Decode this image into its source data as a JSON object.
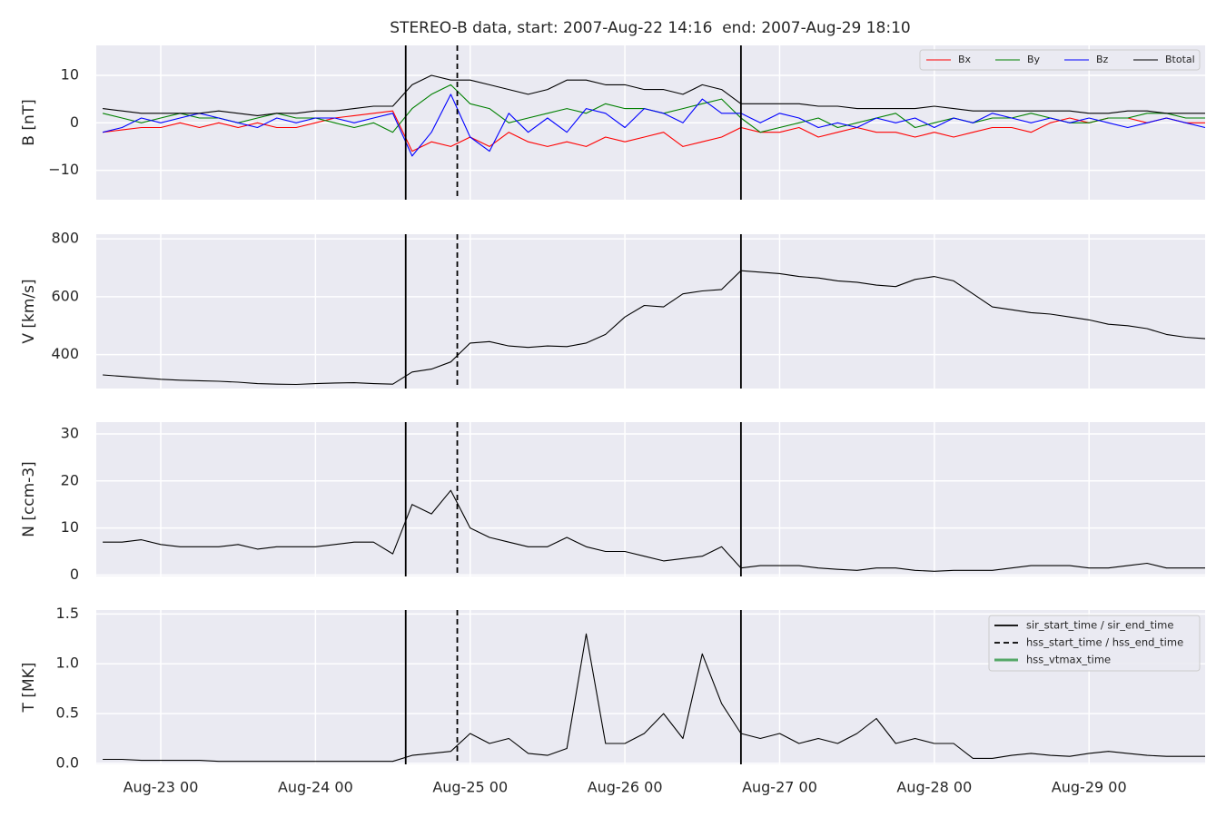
{
  "title": "STEREO-B data, start: 2007-Aug-22 14:16  end: 2007-Aug-29 18:10",
  "chart_data": [
    {
      "type": "line",
      "ylabel": "B [nT]",
      "grid": true,
      "legend": "upper right",
      "show_xtick_labels": false,
      "xlim": [
        "Aug-22 14",
        "Aug-29 18"
      ],
      "xticks": [
        "Aug-23 00",
        "Aug-24 00",
        "Aug-25 00",
        "Aug-26 00",
        "Aug-27 00",
        "Aug-28 00",
        "Aug-29 00"
      ],
      "ylim": [
        -16.2,
        16.3
      ],
      "yticks": [
        {
          "value": -10,
          "label": "−10"
        },
        0,
        10
      ],
      "x": [
        "Aug-22 15",
        "Aug-22 18",
        "Aug-22 21",
        "Aug-23 00",
        "Aug-23 03",
        "Aug-23 06",
        "Aug-23 09",
        "Aug-23 12",
        "Aug-23 15",
        "Aug-23 18",
        "Aug-23 21",
        "Aug-24 00",
        "Aug-24 03",
        "Aug-24 06",
        "Aug-24 09",
        "Aug-24 12",
        "Aug-24 15",
        "Aug-24 18",
        "Aug-24 21",
        "Aug-25 00",
        "Aug-25 03",
        "Aug-25 06",
        "Aug-25 09",
        "Aug-25 12",
        "Aug-25 15",
        "Aug-25 18",
        "Aug-25 21",
        "Aug-26 00",
        "Aug-26 03",
        "Aug-26 06",
        "Aug-26 09",
        "Aug-26 12",
        "Aug-26 15",
        "Aug-26 18",
        "Aug-26 21",
        "Aug-27 00",
        "Aug-27 03",
        "Aug-27 06",
        "Aug-27 09",
        "Aug-27 12",
        "Aug-27 15",
        "Aug-27 18",
        "Aug-27 21",
        "Aug-28 00",
        "Aug-28 03",
        "Aug-28 06",
        "Aug-28 09",
        "Aug-28 12",
        "Aug-28 15",
        "Aug-28 18",
        "Aug-28 21",
        "Aug-29 00",
        "Aug-29 03",
        "Aug-29 06",
        "Aug-29 09",
        "Aug-29 12",
        "Aug-29 15",
        "Aug-29 18"
      ],
      "series": [
        {
          "name": "Bx",
          "color": "#ff0000",
          "values": [
            -2,
            -1.5,
            -1,
            -1,
            0,
            -1,
            0,
            -1,
            0,
            -1,
            -1,
            0,
            1,
            1.5,
            2,
            2.5,
            -6,
            -4,
            -5,
            -3,
            -5,
            -2,
            -4,
            -5,
            -4,
            -5,
            -3,
            -4,
            -3,
            -2,
            -5,
            -4,
            -3,
            -1,
            -2,
            -2,
            -1,
            -3,
            -2,
            -1,
            -2,
            -2,
            -3,
            -2,
            -3,
            -2,
            -1,
            -1,
            -2,
            0,
            1,
            0,
            1,
            1,
            0,
            1,
            0,
            0
          ]
        },
        {
          "name": "By",
          "color": "#008000",
          "values": [
            2,
            1,
            0,
            1,
            2,
            1,
            1,
            0,
            1,
            2,
            1,
            1,
            0,
            -1,
            0,
            -2,
            3,
            6,
            8,
            4,
            3,
            0,
            1,
            2,
            3,
            2,
            4,
            3,
            3,
            2,
            3,
            4,
            5,
            1,
            -2,
            -1,
            0,
            1,
            -1,
            0,
            1,
            2,
            -1,
            0,
            1,
            0,
            1,
            1,
            2,
            1,
            0,
            0,
            1,
            1,
            2,
            2,
            1,
            1
          ]
        },
        {
          "name": "Bz",
          "color": "#0000ff",
          "values": [
            -2,
            -1,
            1,
            0,
            1,
            2,
            1,
            0,
            -1,
            1,
            0,
            1,
            1,
            0,
            1,
            2,
            -7,
            -2,
            6,
            -3,
            -6,
            2,
            -2,
            1,
            -2,
            3,
            2,
            -1,
            3,
            2,
            0,
            5,
            2,
            2,
            0,
            2,
            1,
            -1,
            0,
            -1,
            1,
            0,
            1,
            -1,
            1,
            0,
            2,
            1,
            0,
            1,
            0,
            1,
            0,
            -1,
            0,
            1,
            0,
            -1
          ]
        },
        {
          "name": "Btotal",
          "color": "#000000",
          "values": [
            3,
            2.5,
            2,
            2,
            2,
            2,
            2.5,
            2,
            1.5,
            2,
            2,
            2.5,
            2.5,
            3,
            3.5,
            3.5,
            8,
            10,
            9,
            9,
            8,
            7,
            6,
            7,
            9,
            9,
            8,
            8,
            7,
            7,
            6,
            8,
            7,
            4,
            4,
            4,
            4,
            3.5,
            3.5,
            3,
            3,
            3,
            3,
            3.5,
            3,
            2.5,
            2.5,
            2.5,
            2.5,
            2.5,
            2.5,
            2,
            2,
            2.5,
            2.5,
            2,
            2,
            2
          ]
        }
      ],
      "vlines": [
        {
          "x": "Aug-24 14",
          "style": "solid"
        },
        {
          "x": "Aug-24 22",
          "style": "dashed"
        },
        {
          "x": "Aug-26 18",
          "style": "solid"
        }
      ]
    },
    {
      "type": "line",
      "ylabel": "V [km/s]",
      "grid": true,
      "show_xtick_labels": false,
      "xlim": [
        "Aug-22 14",
        "Aug-29 18"
      ],
      "xticks": [
        "Aug-23 00",
        "Aug-24 00",
        "Aug-25 00",
        "Aug-26 00",
        "Aug-27 00",
        "Aug-28 00",
        "Aug-29 00"
      ],
      "ylim": [
        283,
        816
      ],
      "yticks": [
        400,
        600,
        800
      ],
      "x": [
        "Aug-22 15",
        "Aug-22 18",
        "Aug-22 21",
        "Aug-23 00",
        "Aug-23 03",
        "Aug-23 06",
        "Aug-23 09",
        "Aug-23 12",
        "Aug-23 15",
        "Aug-23 18",
        "Aug-23 21",
        "Aug-24 00",
        "Aug-24 03",
        "Aug-24 06",
        "Aug-24 09",
        "Aug-24 12",
        "Aug-24 15",
        "Aug-24 18",
        "Aug-24 21",
        "Aug-25 00",
        "Aug-25 03",
        "Aug-25 06",
        "Aug-25 09",
        "Aug-25 12",
        "Aug-25 15",
        "Aug-25 18",
        "Aug-25 21",
        "Aug-26 00",
        "Aug-26 03",
        "Aug-26 06",
        "Aug-26 09",
        "Aug-26 12",
        "Aug-26 15",
        "Aug-26 18",
        "Aug-26 21",
        "Aug-27 00",
        "Aug-27 03",
        "Aug-27 06",
        "Aug-27 09",
        "Aug-27 12",
        "Aug-27 15",
        "Aug-27 18",
        "Aug-27 21",
        "Aug-28 00",
        "Aug-28 03",
        "Aug-28 06",
        "Aug-28 09",
        "Aug-28 12",
        "Aug-28 15",
        "Aug-28 18",
        "Aug-28 21",
        "Aug-29 00",
        "Aug-29 03",
        "Aug-29 06",
        "Aug-29 09",
        "Aug-29 12",
        "Aug-29 15",
        "Aug-29 18"
      ],
      "series": [
        {
          "color": "#000000",
          "values": [
            330,
            325,
            320,
            315,
            312,
            310,
            308,
            305,
            300,
            298,
            297,
            300,
            302,
            303,
            300,
            298,
            340,
            350,
            375,
            440,
            445,
            430,
            425,
            430,
            428,
            440,
            470,
            530,
            570,
            565,
            610,
            620,
            625,
            690,
            685,
            680,
            670,
            665,
            655,
            650,
            640,
            635,
            660,
            670,
            655,
            610,
            565,
            555,
            545,
            540,
            530,
            520,
            505,
            500,
            490,
            470,
            460,
            455
          ]
        }
      ],
      "vlines": [
        {
          "x": "Aug-24 14",
          "style": "solid"
        },
        {
          "x": "Aug-24 22",
          "style": "dashed"
        },
        {
          "x": "Aug-26 18",
          "style": "solid"
        }
      ]
    },
    {
      "type": "line",
      "ylabel": "N [ccm-3]",
      "grid": true,
      "show_xtick_labels": false,
      "xlim": [
        "Aug-22 14",
        "Aug-29 18"
      ],
      "xticks": [
        "Aug-23 00",
        "Aug-24 00",
        "Aug-25 00",
        "Aug-26 00",
        "Aug-27 00",
        "Aug-28 00",
        "Aug-29 00"
      ],
      "ylim": [
        -0.3,
        32.5
      ],
      "yticks": [
        0,
        10,
        20,
        30
      ],
      "x": [
        "Aug-22 15",
        "Aug-22 18",
        "Aug-22 21",
        "Aug-23 00",
        "Aug-23 03",
        "Aug-23 06",
        "Aug-23 09",
        "Aug-23 12",
        "Aug-23 15",
        "Aug-23 18",
        "Aug-23 21",
        "Aug-24 00",
        "Aug-24 03",
        "Aug-24 06",
        "Aug-24 09",
        "Aug-24 12",
        "Aug-24 15",
        "Aug-24 18",
        "Aug-24 21",
        "Aug-25 00",
        "Aug-25 03",
        "Aug-25 06",
        "Aug-25 09",
        "Aug-25 12",
        "Aug-25 15",
        "Aug-25 18",
        "Aug-25 21",
        "Aug-26 00",
        "Aug-26 03",
        "Aug-26 06",
        "Aug-26 09",
        "Aug-26 12",
        "Aug-26 15",
        "Aug-26 18",
        "Aug-26 21",
        "Aug-27 00",
        "Aug-27 03",
        "Aug-27 06",
        "Aug-27 09",
        "Aug-27 12",
        "Aug-27 15",
        "Aug-27 18",
        "Aug-27 21",
        "Aug-28 00",
        "Aug-28 03",
        "Aug-28 06",
        "Aug-28 09",
        "Aug-28 12",
        "Aug-28 15",
        "Aug-28 18",
        "Aug-28 21",
        "Aug-29 00",
        "Aug-29 03",
        "Aug-29 06",
        "Aug-29 09",
        "Aug-29 12",
        "Aug-29 15",
        "Aug-29 18"
      ],
      "series": [
        {
          "color": "#000000",
          "values": [
            7,
            7,
            7.5,
            6.5,
            6,
            6,
            6,
            6.5,
            5.5,
            6,
            6,
            6,
            6.5,
            7,
            7,
            4.5,
            15,
            13,
            18,
            10,
            8,
            7,
            6,
            6,
            8,
            6,
            5,
            5,
            4,
            3,
            3.5,
            4,
            6,
            1.5,
            2,
            2,
            2,
            1.5,
            1.2,
            1,
            1.5,
            1.5,
            1,
            0.8,
            1,
            1,
            1,
            1.5,
            2,
            2,
            2,
            1.5,
            1.5,
            2,
            2.5,
            1.5,
            1.5,
            1.5
          ]
        }
      ],
      "vlines": [
        {
          "x": "Aug-24 14",
          "style": "solid"
        },
        {
          "x": "Aug-24 22",
          "style": "dashed"
        },
        {
          "x": "Aug-26 18",
          "style": "solid"
        }
      ]
    },
    {
      "type": "line",
      "ylabel": "T [MK]",
      "grid": true,
      "show_xtick_labels": true,
      "xlim": [
        "Aug-22 14",
        "Aug-29 18"
      ],
      "xticks": [
        "Aug-23 00",
        "Aug-24 00",
        "Aug-25 00",
        "Aug-26 00",
        "Aug-27 00",
        "Aug-28 00",
        "Aug-29 00"
      ],
      "ylim": [
        -0.01,
        1.54
      ],
      "yticks": [
        {
          "value": 0,
          "label": "0.0"
        },
        0.5,
        {
          "value": 1,
          "label": "1.0"
        },
        1.5
      ],
      "x": [
        "Aug-22 15",
        "Aug-22 18",
        "Aug-22 21",
        "Aug-23 00",
        "Aug-23 03",
        "Aug-23 06",
        "Aug-23 09",
        "Aug-23 12",
        "Aug-23 15",
        "Aug-23 18",
        "Aug-23 21",
        "Aug-24 00",
        "Aug-24 03",
        "Aug-24 06",
        "Aug-24 09",
        "Aug-24 12",
        "Aug-24 15",
        "Aug-24 18",
        "Aug-24 21",
        "Aug-25 00",
        "Aug-25 03",
        "Aug-25 06",
        "Aug-25 09",
        "Aug-25 12",
        "Aug-25 15",
        "Aug-25 18",
        "Aug-25 21",
        "Aug-26 00",
        "Aug-26 03",
        "Aug-26 06",
        "Aug-26 09",
        "Aug-26 12",
        "Aug-26 15",
        "Aug-26 18",
        "Aug-26 21",
        "Aug-27 00",
        "Aug-27 03",
        "Aug-27 06",
        "Aug-27 09",
        "Aug-27 12",
        "Aug-27 15",
        "Aug-27 18",
        "Aug-27 21",
        "Aug-28 00",
        "Aug-28 03",
        "Aug-28 06",
        "Aug-28 09",
        "Aug-28 12",
        "Aug-28 15",
        "Aug-28 18",
        "Aug-28 21",
        "Aug-29 00",
        "Aug-29 03",
        "Aug-29 06",
        "Aug-29 09",
        "Aug-29 12",
        "Aug-29 15",
        "Aug-29 18"
      ],
      "series": [
        {
          "color": "#000000",
          "values": [
            0.04,
            0.04,
            0.03,
            0.03,
            0.03,
            0.03,
            0.02,
            0.02,
            0.02,
            0.02,
            0.02,
            0.02,
            0.02,
            0.02,
            0.02,
            0.02,
            0.08,
            0.1,
            0.12,
            0.3,
            0.2,
            0.25,
            0.1,
            0.08,
            0.15,
            1.3,
            0.2,
            0.2,
            0.3,
            0.5,
            0.25,
            1.1,
            0.6,
            0.3,
            0.25,
            0.3,
            0.2,
            0.25,
            0.2,
            0.3,
            0.45,
            0.2,
            0.25,
            0.2,
            0.2,
            0.05,
            0.05,
            0.08,
            0.1,
            0.08,
            0.07,
            0.1,
            0.12,
            0.1,
            0.08,
            0.07,
            0.07,
            0.07
          ]
        }
      ],
      "vlines": [
        {
          "x": "Aug-24 14",
          "style": "solid"
        },
        {
          "x": "Aug-24 22",
          "style": "dashed"
        },
        {
          "x": "Aug-26 18",
          "style": "solid"
        }
      ],
      "legend": "upper right",
      "legend_entries": [
        {
          "label": "sir_start_time / sir_end_time",
          "color": "#000000",
          "style": "solid"
        },
        {
          "label": "hss_start_time / hss_end_time",
          "color": "#000000",
          "style": "dashed"
        },
        {
          "label": "hss_vtmax_time",
          "color": "#55a868",
          "style": "solid"
        }
      ]
    }
  ]
}
